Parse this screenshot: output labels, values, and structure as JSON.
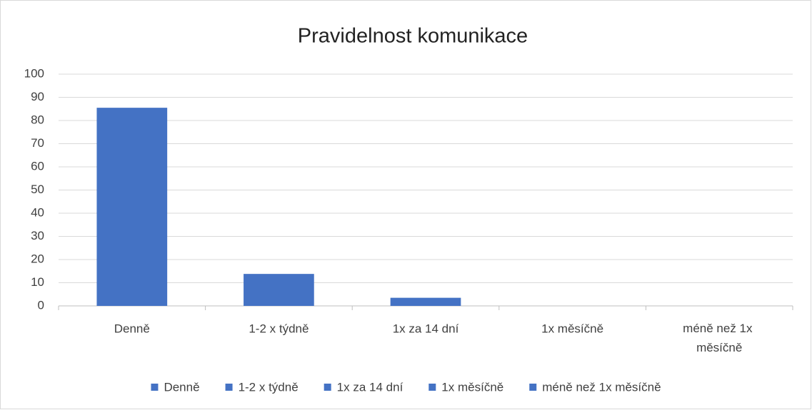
{
  "chart_data": {
    "type": "bar",
    "title": "Pravidelnost komunikace",
    "categories": [
      "Denně",
      "1-2 x týdně",
      "1x za 14 dní",
      "1x měsíčně",
      "méně než 1x měsíčně"
    ],
    "values": [
      85.5,
      13.8,
      3.5,
      0,
      0
    ],
    "color": "#4472c4",
    "ylim": [
      0,
      100
    ],
    "yticks": [
      0,
      10,
      20,
      30,
      40,
      50,
      60,
      70,
      80,
      90,
      100
    ],
    "grid": true,
    "legend": "bottom"
  }
}
